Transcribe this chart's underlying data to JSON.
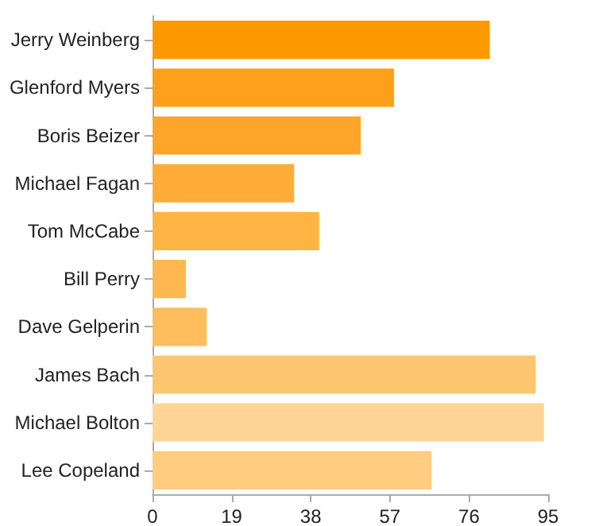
{
  "chart_data": {
    "type": "bar",
    "orientation": "horizontal",
    "categories": [
      "Jerry Weinberg",
      "Glenford Myers",
      "Boris Beizer",
      "Michael Fagan",
      "Tom McCabe",
      "Bill Perry",
      "Dave Gelperin",
      "James Bach",
      "Michael Bolton",
      "Lee Copeland"
    ],
    "values": [
      81,
      58,
      50,
      34,
      40,
      8,
      13,
      92,
      94,
      67
    ],
    "colors": [
      "#ff9900",
      "#ffa01a",
      "#ffa62a",
      "#ffad38",
      "#ffb444",
      "#ffb84f",
      "#ffbd5c",
      "#ffc670",
      "#ffd595",
      "#ffcc80"
    ],
    "xlim": [
      0,
      95
    ],
    "xticks": [
      0,
      19,
      38,
      57,
      76,
      95
    ],
    "grid": false
  }
}
